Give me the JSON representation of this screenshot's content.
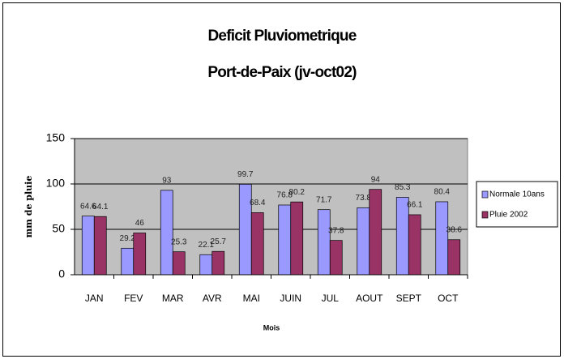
{
  "chart_data": {
    "type": "bar",
    "title": "Deficit Pluviometrique",
    "subtitle": "Port-de-Paix (jv-oct02)",
    "x_label": "Mois",
    "y_label": "mm de pluie",
    "categories": [
      "JAN",
      "FEV",
      "MAR",
      "AVR",
      "MAI",
      "JUIN",
      "JUL",
      "AOUT",
      "SEPT",
      "OCT"
    ],
    "series": [
      {
        "name": "Normale 10ans",
        "color": "#9999ff",
        "values": [
          64.6,
          29.2,
          93,
          22.1,
          99.7,
          76.8,
          71.7,
          73.8,
          85.3,
          80.4
        ]
      },
      {
        "name": "Pluie 2002",
        "color": "#993366",
        "values": [
          64.1,
          46,
          25.3,
          25.7,
          68.4,
          80.2,
          37.8,
          94,
          66.1,
          38.6
        ]
      }
    ],
    "ylim": [
      0,
      150
    ],
    "yticks": [
      0,
      50,
      100,
      150
    ],
    "grid": true,
    "legend": "right",
    "plot_background": "#c0c0c0"
  }
}
